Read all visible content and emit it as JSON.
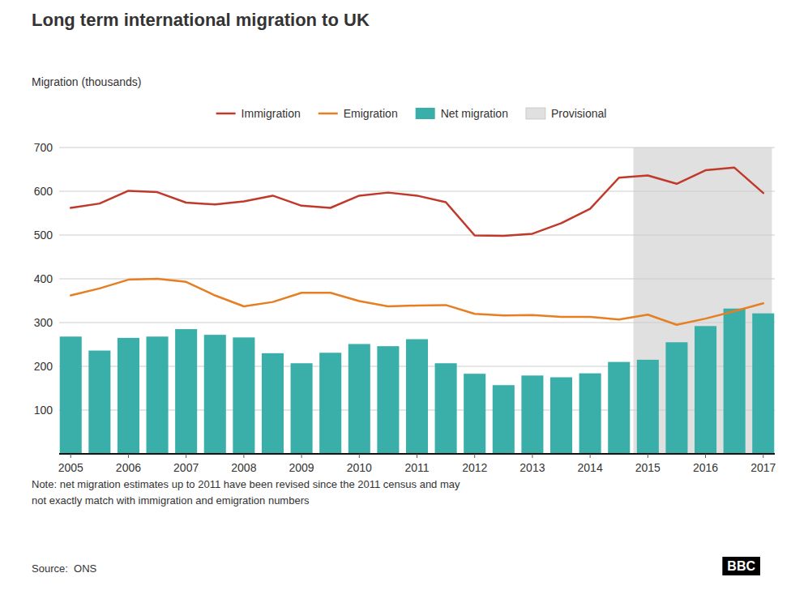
{
  "chart_data": {
    "type": "bar",
    "title": "Long term international migration to UK",
    "y_label": "Migration (thousands)",
    "note": "Note: net migration estimates up to 2011 have been revised since the 2011 census and may\nnot exactly match with immigration and emigration numbers",
    "source": "Source:  ONS",
    "logo": "BBC",
    "x": [
      2005.0,
      2005.5,
      2006.0,
      2006.5,
      2007.0,
      2007.5,
      2008.0,
      2008.5,
      2009.0,
      2009.5,
      2010.0,
      2010.5,
      2011.0,
      2011.5,
      2012.0,
      2012.5,
      2013.0,
      2013.5,
      2014.0,
      2014.5,
      2015.0,
      2015.5,
      2016.0,
      2016.5,
      2017.0
    ],
    "series": [
      {
        "name": "Immigration",
        "type": "line",
        "color": "#c0392b",
        "values": [
          562,
          572,
          601,
          598,
          574,
          570,
          577,
          590,
          567,
          562,
          590,
          597,
          590,
          575,
          499,
          498,
          503,
          527,
          560,
          631,
          636,
          617,
          648,
          654,
          596
        ]
      },
      {
        "name": "Emigration",
        "type": "line",
        "color": "#e67e22",
        "values": [
          362,
          378,
          398,
          400,
          393,
          362,
          337,
          347,
          368,
          368,
          349,
          337,
          339,
          340,
          320,
          316,
          317,
          313,
          313,
          307,
          318,
          295,
          309,
          326,
          344
        ]
      },
      {
        "name": "Net migration",
        "type": "bar",
        "color": "#3aafa9",
        "values": [
          268,
          236,
          265,
          268,
          285,
          272,
          266,
          230,
          207,
          231,
          251,
          246,
          262,
          207,
          183,
          157,
          179,
          175,
          184,
          210,
          215,
          255,
          292,
          332,
          321
        ]
      }
    ],
    "spans": [
      {
        "name": "Provisional",
        "x0": 2014.75,
        "x1": 2017.15,
        "color": "#e0e0e0"
      }
    ],
    "xlim": [
      2004.8,
      2017.2
    ],
    "xticks": [
      2005,
      2006,
      2007,
      2008,
      2009,
      2010,
      2011,
      2012,
      2013,
      2014,
      2015,
      2016,
      2017
    ],
    "ylim": [
      0,
      700
    ],
    "yticks": [
      {
        "value": 0,
        "label": null
      },
      100,
      200,
      300,
      400,
      500,
      600,
      700
    ],
    "grid": true,
    "legend": "top"
  }
}
